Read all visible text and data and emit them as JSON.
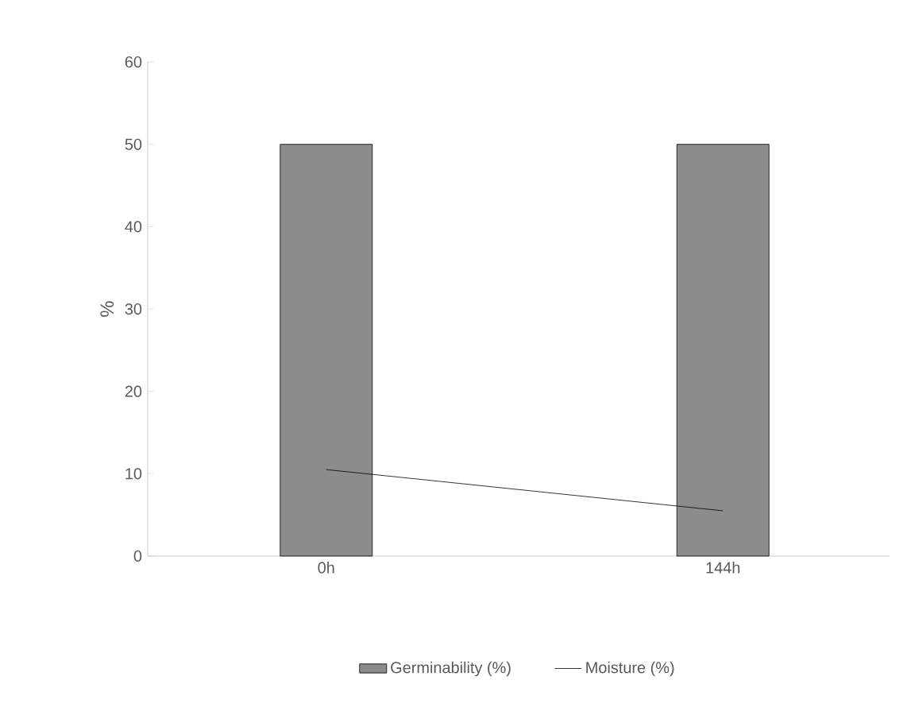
{
  "chart_data": {
    "type": "bar",
    "ylabel": "%",
    "categories": [
      "0h",
      "144h"
    ],
    "series": [
      {
        "name": "Germinability (%)",
        "color": "#8c8c8c",
        "values": [
          50,
          50
        ]
      },
      {
        "name": "Moisture (%)",
        "type": "line",
        "color": "#000000",
        "values": [
          10.5,
          5.5
        ]
      }
    ],
    "ylim": [
      0,
      60
    ],
    "yticks": [
      0,
      10,
      20,
      30,
      40,
      50,
      60
    ],
    "legend": "bottom",
    "line_style": "solid"
  }
}
